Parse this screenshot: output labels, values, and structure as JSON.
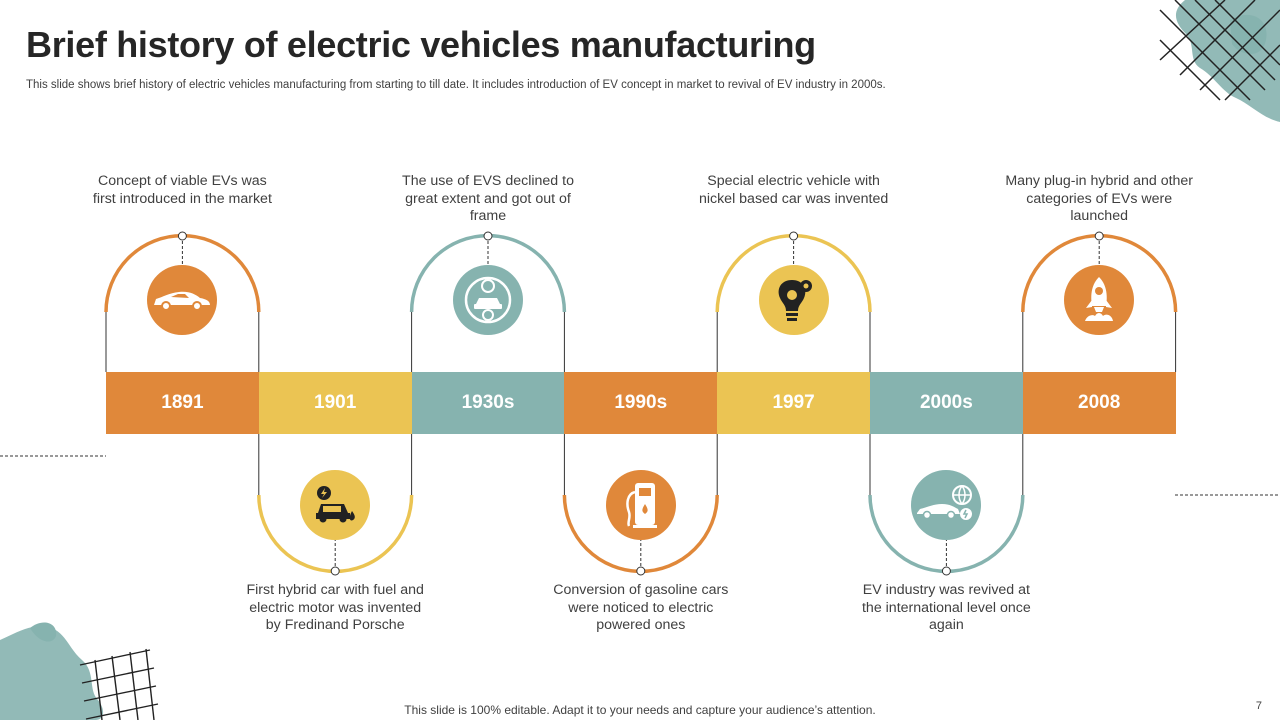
{
  "slide": {
    "title": "Brief history of electric vehicles manufacturing",
    "subtitle": "This slide shows brief history of electric vehicles manufacturing from starting to till date. It includes introduction of EV concept in market to revival of EV industry in 2000s.",
    "footer": "This slide is 100% editable. Adapt it to your needs and capture your audience’s attention.",
    "page_number": "7"
  },
  "colors": {
    "orange": "#E0883A",
    "yellow": "#EBC453",
    "teal": "#86B3AF",
    "text": "#404040"
  },
  "timeline": [
    {
      "year": "1891",
      "color": "orange",
      "position": "top",
      "icon": "car-icon",
      "description": "Concept of viable EVs was first introduced in the market"
    },
    {
      "year": "1901",
      "color": "yellow",
      "position": "bottom",
      "icon": "hybrid-car-icon",
      "description": "First hybrid car with fuel and electric motor was invented by Fredinand Porsche"
    },
    {
      "year": "1930s",
      "color": "teal",
      "position": "top",
      "icon": "declining-car-icon",
      "description": "The use of EVS declined to great extent and got out of frame"
    },
    {
      "year": "1990s",
      "color": "orange",
      "position": "bottom",
      "icon": "fuel-pump-icon",
      "description": "Conversion of gasoline cars were noticed to electric powered ones"
    },
    {
      "year": "1997",
      "color": "yellow",
      "position": "top",
      "icon": "lightbulb-gear-icon",
      "description": "Special electric vehicle with nickel based car was invented"
    },
    {
      "year": "2000s",
      "color": "teal",
      "position": "bottom",
      "icon": "global-car-icon",
      "description": "EV industry was revived at the international level once again"
    },
    {
      "year": "2008",
      "color": "orange",
      "position": "top",
      "icon": "rocket-icon",
      "description": "Many plug-in hybrid and other categories of EVs were launched"
    }
  ]
}
